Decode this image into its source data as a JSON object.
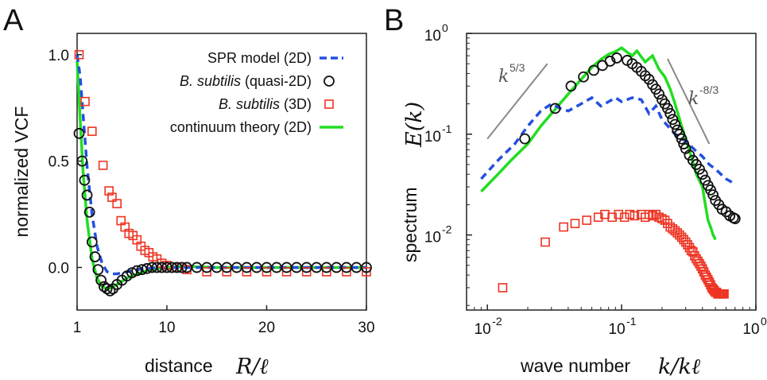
{
  "panels": {
    "A": {
      "letter": "A"
    },
    "B": {
      "letter": "B"
    }
  },
  "colors": {
    "spr": "#2450e0",
    "quasi2d": "#111111",
    "bs3d": "#ee3322",
    "continuum": "#22dd22",
    "slope_line": "#888888"
  },
  "chart_data": [
    {
      "type": "scatter",
      "panel": "A",
      "xlabel_text": "distance",
      "xlabel_math": "R/ℓ",
      "ylabel": "normalized VCF",
      "xlim": [
        1,
        30
      ],
      "ylim": [
        -0.2,
        1.1
      ],
      "xticks": [
        1,
        10,
        20,
        30
      ],
      "yticks": [
        {
          "value": 0.0,
          "label": "0.0"
        },
        {
          "value": 0.5,
          "label": "0.5"
        },
        {
          "value": 1.0,
          "label": "1.0"
        }
      ],
      "legend": {
        "placement": "top-right",
        "entries": [
          {
            "series": "spr",
            "text": "SPR model (2D)"
          },
          {
            "series": "quasi2d",
            "italic": "B. subtilis",
            "text": " (quasi-2D)"
          },
          {
            "series": "bs3d",
            "italic": "B. subtilis",
            "text": " (3D)"
          },
          {
            "series": "continuum",
            "text": "continuum theory (2D)"
          }
        ]
      },
      "series": [
        {
          "key": "spr",
          "style": "dashed-line",
          "x": [
            1.0,
            1.3,
            1.6,
            2.0,
            2.5,
            3.0,
            3.5,
            4.0,
            4.5,
            5.0,
            6.0,
            7.0,
            8.0,
            9.0,
            10.0,
            12.0,
            15.0,
            20.0,
            25.0,
            30.0
          ],
          "y": [
            1.0,
            0.9,
            0.72,
            0.47,
            0.25,
            0.1,
            0.02,
            -0.02,
            -0.03,
            -0.03,
            -0.02,
            -0.01,
            -0.005,
            0.0,
            0.0,
            0.0,
            0.0,
            0.0,
            0.0,
            0.0
          ]
        },
        {
          "key": "continuum",
          "style": "solid-line",
          "x": [
            1.0,
            1.3,
            1.6,
            2.0,
            2.5,
            3.0,
            3.5,
            4.0,
            4.5,
            5.0,
            5.5,
            6.0,
            7.0,
            8.0,
            9.0,
            10.0,
            12.0,
            15.0,
            20.0,
            25.0,
            30.0
          ],
          "y": [
            0.97,
            0.7,
            0.45,
            0.22,
            0.04,
            -0.05,
            -0.09,
            -0.1,
            -0.095,
            -0.08,
            -0.065,
            -0.05,
            -0.03,
            -0.015,
            -0.005,
            0.0,
            0.005,
            0.0,
            0.0,
            0.0,
            0.0
          ]
        },
        {
          "key": "quasi2d",
          "style": "circle",
          "x": [
            1.2,
            1.5,
            1.75,
            2.0,
            2.25,
            2.5,
            2.8,
            3.1,
            3.4,
            3.7,
            4.0,
            4.3,
            4.6,
            5.0,
            5.5,
            6.0,
            6.5,
            7.0,
            7.5,
            8.0,
            8.5,
            9.0,
            9.5,
            10.0,
            10.5,
            11.0,
            11.5,
            12.0,
            13.0,
            14.0,
            15.0,
            16.0,
            17.0,
            18.0,
            19.0,
            20.0,
            21.0,
            22.0,
            23.0,
            24.0,
            25.0,
            26.0,
            27.0,
            28.0,
            29.0,
            30.0
          ],
          "y": [
            0.63,
            0.5,
            0.41,
            0.34,
            0.26,
            0.12,
            0.05,
            -0.01,
            -0.06,
            -0.09,
            -0.1,
            -0.11,
            -0.1,
            -0.08,
            -0.06,
            -0.04,
            -0.025,
            -0.015,
            -0.01,
            -0.005,
            0.0,
            0.0,
            0.0,
            0.0,
            0.0,
            0.0,
            0.0,
            0.0,
            0.0,
            0.0,
            0.0,
            0.0,
            0.0,
            0.0,
            0.0,
            0.0,
            0.0,
            0.0,
            0.0,
            0.0,
            0.0,
            0.0,
            0.0,
            0.0,
            0.0,
            0.0
          ]
        },
        {
          "key": "bs3d",
          "style": "square",
          "x": [
            1.2,
            1.8,
            2.5,
            3.6,
            4.2,
            4.5,
            5.0,
            5.4,
            5.8,
            6.2,
            6.6,
            7.0,
            7.4,
            7.8,
            8.2,
            8.6,
            9.0,
            9.5,
            10.0,
            11.0,
            12.0,
            14.0,
            16.0,
            18.0,
            20.0,
            22.0,
            24.0,
            26.0,
            28.0,
            30.0
          ],
          "y": [
            1.0,
            0.78,
            0.64,
            0.48,
            0.36,
            0.33,
            0.3,
            0.22,
            0.19,
            0.16,
            0.15,
            0.13,
            0.1,
            0.08,
            0.07,
            0.05,
            0.04,
            0.02,
            0.01,
            0.0,
            -0.01,
            -0.02,
            -0.02,
            -0.02,
            -0.02,
            -0.02,
            -0.02,
            -0.02,
            -0.02,
            -0.02
          ]
        }
      ]
    },
    {
      "type": "scatter",
      "panel": "B",
      "scale": "log-log",
      "xlabel_text": "wave number",
      "xlabel_math": "k/kℓ",
      "ylabel_text": "spectrum",
      "ylabel_math": "E(k)",
      "xlim": [
        0.007,
        1.0
      ],
      "ylim": [
        0.0018,
        1.0
      ],
      "xticks": [
        {
          "value": 0.01,
          "base": "10",
          "exp": "-2"
        },
        {
          "value": 0.1,
          "base": "10",
          "exp": "-1"
        },
        {
          "value": 1.0,
          "base": "10",
          "exp": "0"
        }
      ],
      "yticks": [
        {
          "value": 0.01,
          "base": "10",
          "exp": "-2"
        },
        {
          "value": 0.1,
          "base": "10",
          "exp": "-1"
        },
        {
          "value": 1.0,
          "base": "10",
          "exp": "0"
        }
      ],
      "annotations": [
        {
          "text_base": "k",
          "text_exp": "5/3",
          "x1": 0.01,
          "y1": 0.09,
          "x2": 0.028,
          "y2": 0.5
        },
        {
          "text_base": "k",
          "text_exp": "-8/3",
          "x1": 0.22,
          "y1": 0.56,
          "x2": 0.45,
          "y2": 0.08
        }
      ],
      "series": [
        {
          "key": "spr",
          "style": "dashed-line",
          "x": [
            0.009,
            0.012,
            0.016,
            0.02,
            0.025,
            0.03,
            0.035,
            0.04,
            0.05,
            0.06,
            0.07,
            0.08,
            0.09,
            0.1,
            0.12,
            0.14,
            0.16,
            0.18,
            0.2,
            0.25,
            0.3,
            0.35,
            0.4,
            0.45,
            0.5,
            0.55,
            0.6,
            0.7
          ],
          "y": [
            0.036,
            0.055,
            0.08,
            0.12,
            0.17,
            0.2,
            0.18,
            0.17,
            0.2,
            0.23,
            0.19,
            0.21,
            0.23,
            0.21,
            0.23,
            0.22,
            0.16,
            0.19,
            0.14,
            0.1,
            0.085,
            0.07,
            0.06,
            0.05,
            0.045,
            0.04,
            0.036,
            0.032
          ]
        },
        {
          "key": "continuum",
          "style": "solid-line",
          "x": [
            0.009,
            0.012,
            0.015,
            0.02,
            0.025,
            0.03,
            0.04,
            0.05,
            0.06,
            0.07,
            0.08,
            0.09,
            0.1,
            0.11,
            0.12,
            0.13,
            0.15,
            0.17,
            0.19,
            0.21,
            0.23,
            0.25,
            0.28,
            0.3,
            0.33,
            0.36,
            0.4,
            0.42,
            0.44,
            0.46,
            0.48,
            0.5
          ],
          "y": [
            0.027,
            0.04,
            0.055,
            0.08,
            0.12,
            0.16,
            0.25,
            0.35,
            0.46,
            0.55,
            0.62,
            0.66,
            0.72,
            0.65,
            0.6,
            0.67,
            0.52,
            0.6,
            0.44,
            0.37,
            0.28,
            0.2,
            0.12,
            0.09,
            0.06,
            0.04,
            0.03,
            0.02,
            0.014,
            0.012,
            0.01,
            0.009
          ]
        },
        {
          "key": "quasi2d",
          "style": "circle",
          "x": [
            0.019,
            0.032,
            0.042,
            0.052,
            0.062,
            0.072,
            0.082,
            0.092,
            0.11,
            0.12,
            0.13,
            0.14,
            0.15,
            0.16,
            0.17,
            0.18,
            0.19,
            0.2,
            0.21,
            0.22,
            0.23,
            0.24,
            0.25,
            0.26,
            0.27,
            0.28,
            0.29,
            0.3,
            0.32,
            0.34,
            0.36,
            0.38,
            0.4,
            0.42,
            0.44,
            0.46,
            0.48,
            0.5,
            0.53,
            0.56,
            0.6,
            0.64,
            0.68,
            0.7
          ],
          "y": [
            0.09,
            0.18,
            0.3,
            0.37,
            0.43,
            0.48,
            0.53,
            0.57,
            0.54,
            0.5,
            0.46,
            0.42,
            0.38,
            0.35,
            0.31,
            0.28,
            0.25,
            0.22,
            0.2,
            0.18,
            0.16,
            0.14,
            0.125,
            0.11,
            0.1,
            0.09,
            0.08,
            0.072,
            0.062,
            0.055,
            0.05,
            0.045,
            0.04,
            0.035,
            0.031,
            0.028,
            0.025,
            0.022,
            0.02,
            0.018,
            0.017,
            0.0155,
            0.0148,
            0.0145
          ]
        },
        {
          "key": "bs3d",
          "style": "square",
          "x": [
            0.013,
            0.027,
            0.037,
            0.045,
            0.055,
            0.067,
            0.075,
            0.085,
            0.095,
            0.105,
            0.115,
            0.125,
            0.14,
            0.15,
            0.16,
            0.17,
            0.18,
            0.19,
            0.2,
            0.21,
            0.22,
            0.23,
            0.24,
            0.25,
            0.26,
            0.27,
            0.28,
            0.29,
            0.3,
            0.31,
            0.32,
            0.33,
            0.34,
            0.35,
            0.36,
            0.37,
            0.38,
            0.39,
            0.4,
            0.41,
            0.42,
            0.43,
            0.44,
            0.45,
            0.46,
            0.47,
            0.48,
            0.49,
            0.5,
            0.51,
            0.52,
            0.53,
            0.54,
            0.55,
            0.56,
            0.57,
            0.58
          ],
          "y": [
            0.003,
            0.0085,
            0.012,
            0.013,
            0.014,
            0.015,
            0.016,
            0.015,
            0.016,
            0.015,
            0.016,
            0.0155,
            0.016,
            0.015,
            0.016,
            0.0155,
            0.016,
            0.015,
            0.0145,
            0.014,
            0.013,
            0.012,
            0.0115,
            0.011,
            0.0105,
            0.01,
            0.0095,
            0.009,
            0.0085,
            0.008,
            0.0075,
            0.007,
            0.0068,
            0.0062,
            0.0058,
            0.0055,
            0.0052,
            0.0049,
            0.0046,
            0.0043,
            0.004,
            0.0038,
            0.0036,
            0.0034,
            0.0032,
            0.003,
            0.0029,
            0.0028,
            0.0027,
            0.0027,
            0.0026,
            0.0026,
            0.0026,
            0.0026,
            0.0026,
            0.0026,
            0.0026
          ]
        }
      ]
    }
  ]
}
